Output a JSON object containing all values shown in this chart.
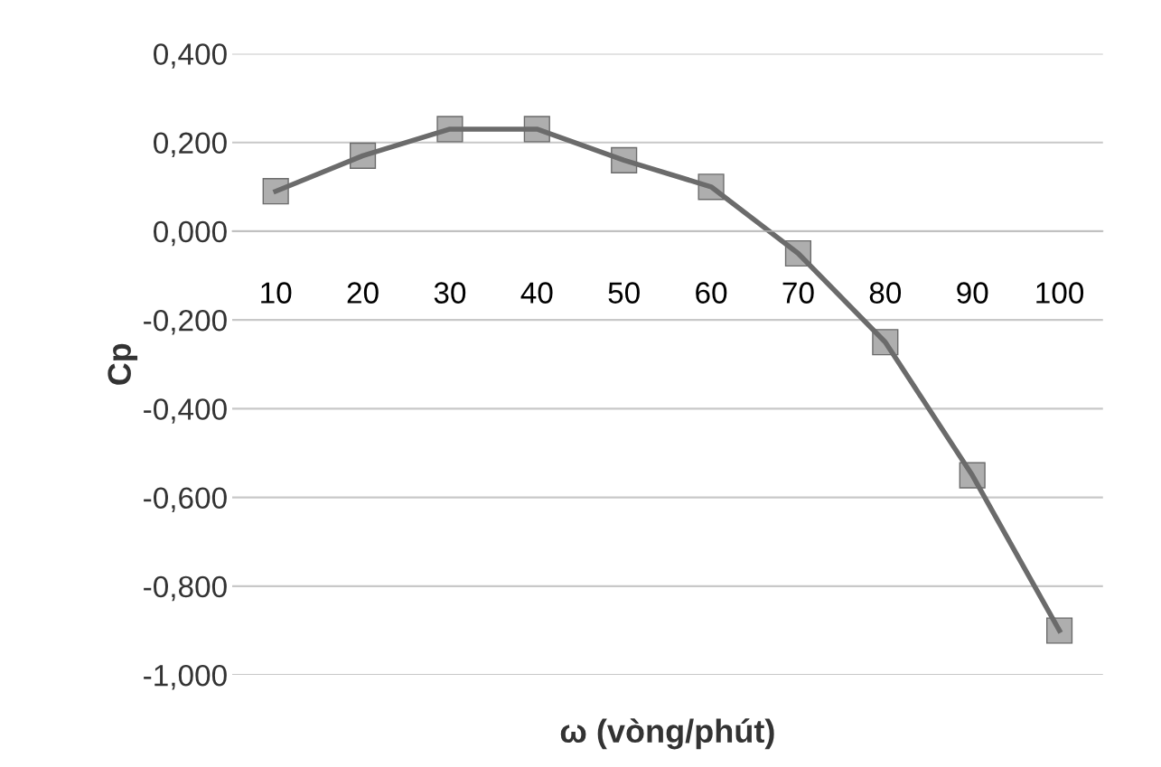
{
  "chart_data": {
    "type": "line",
    "xlabel": "ω (vòng/phút)",
    "ylabel": "Cp",
    "categories": [
      "10",
      "20",
      "30",
      "40",
      "50",
      "60",
      "70",
      "80",
      "90",
      "100"
    ],
    "series": [
      {
        "color": "#6b6b6b",
        "values": [
          0.09,
          0.17,
          0.23,
          0.23,
          0.16,
          0.1,
          -0.05,
          -0.25,
          -0.55,
          -0.9
        ]
      }
    ],
    "ylim": [
      -1.0,
      0.4
    ],
    "yticks": [
      {
        "value": 0.4,
        "label": "0,400"
      },
      {
        "value": 0.2,
        "label": "0,200"
      },
      {
        "value": 0.0,
        "label": "0,000"
      },
      {
        "value": -0.2,
        "label": "-0,200"
      },
      {
        "value": -0.4,
        "label": "-0,400"
      },
      {
        "value": -0.6,
        "label": "-0,600"
      },
      {
        "value": -0.8,
        "label": "-0,800"
      },
      {
        "value": -1.0,
        "label": "-1,000"
      }
    ],
    "grid": "y",
    "marker": "square",
    "line_style": "solid"
  }
}
